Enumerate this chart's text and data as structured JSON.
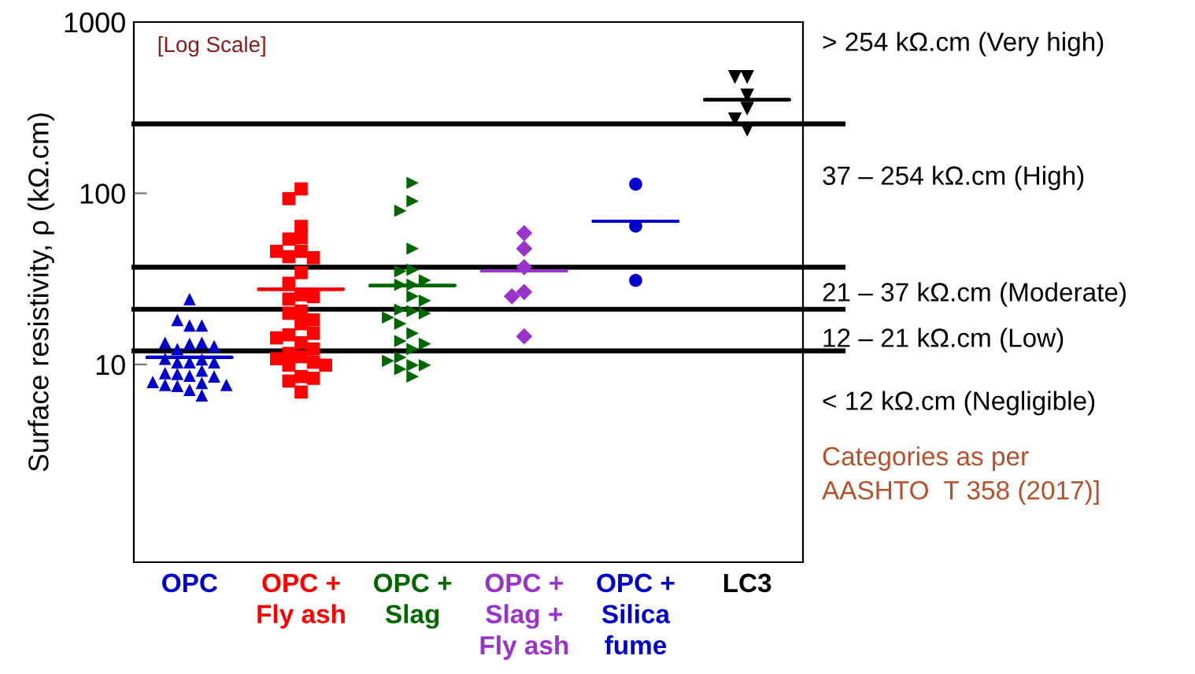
{
  "chart_data": {
    "type": "scatter",
    "ylabel": "Surface resistivity, ρ (kΩ.cm)",
    "categories": [
      "OPC",
      "OPC +\nFly ash",
      "OPC +\nSlag",
      "OPC +\nSlag +\nFly ash",
      "OPC +\nSilica\nfume",
      "LC3"
    ],
    "log": "y",
    "ylim": [
      0.7,
      1000
    ],
    "yticks": [
      10,
      100,
      1000
    ],
    "grid": false,
    "legend": false,
    "series": [
      {
        "color": "#0000cc",
        "marker": "triangle",
        "x": [
          "OPC",
          "OPC",
          "OPC",
          "OPC",
          "OPC",
          "OPC",
          "OPC",
          "OPC",
          "OPC",
          "OPC",
          "OPC",
          "OPC",
          "OPC",
          "OPC",
          "OPC",
          "OPC",
          "OPC",
          "OPC",
          "OPC",
          "OPC",
          "OPC",
          "OPC",
          "OPC",
          "OPC",
          "OPC",
          "OPC"
        ],
        "values": [
          24.1,
          16.9,
          18.2,
          16.9,
          13.2,
          12.3,
          13.4,
          13.4,
          12.8,
          10.3,
          10.3,
          10.7,
          10.8,
          10.3,
          8.6,
          8.8,
          9.2,
          8.9,
          8.5,
          7.5,
          7.8,
          7.9,
          7.6,
          7.6,
          7.1,
          6.6
        ]
      },
      {
        "color": "#ff0000",
        "marker": "square",
        "x": [
          "OPC +\nFly ash",
          "OPC +\nFly ash",
          "OPC +\nFly ash",
          "OPC +\nFly ash",
          "OPC +\nFly ash",
          "OPC +\nFly ash",
          "OPC +\nFly ash",
          "OPC +\nFly ash",
          "OPC +\nFly ash",
          "OPC +\nFly ash",
          "OPC +\nFly ash",
          "OPC +\nFly ash",
          "OPC +\nFly ash",
          "OPC +\nFly ash",
          "OPC +\nFly ash",
          "OPC +\nFly ash",
          "OPC +\nFly ash",
          "OPC +\nFly ash",
          "OPC +\nFly ash",
          "OPC +\nFly ash",
          "OPC +\nFly ash",
          "OPC +\nFly ash",
          "OPC +\nFly ash",
          "OPC +\nFly ash",
          "OPC +\nFly ash",
          "OPC +\nFly ash",
          "OPC +\nFly ash",
          "OPC +\nFly ash",
          "OPC +\nFly ash",
          "OPC +\nFly ash",
          "OPC +\nFly ash",
          "OPC +\nFly ash",
          "OPC +\nFly ash"
        ],
        "values": [
          106,
          93,
          64,
          55,
          54,
          45.8,
          42.6,
          42,
          45.8,
          34.4,
          29.8,
          25.5,
          24.1,
          24.9,
          20.5,
          19.9,
          18.2,
          17.3,
          14.9,
          15.2,
          13.4,
          14.3,
          11.1,
          11.6,
          12.3,
          10.8,
          9.9,
          10.3,
          9.9,
          8.5,
          8.0,
          8.3,
          6.9
        ]
      },
      {
        "color": "#006600",
        "marker": "triangle_right",
        "x": [
          "OPC +\nSlag",
          "OPC +\nSlag",
          "OPC +\nSlag",
          "OPC +\nSlag",
          "OPC +\nSlag",
          "OPC +\nSlag",
          "OPC +\nSlag",
          "OPC +\nSlag",
          "OPC +\nSlag",
          "OPC +\nSlag",
          "OPC +\nSlag",
          "OPC +\nSlag",
          "OPC +\nSlag",
          "OPC +\nSlag",
          "OPC +\nSlag",
          "OPC +\nSlag",
          "OPC +\nSlag",
          "OPC +\nSlag",
          "OPC +\nSlag",
          "OPC +\nSlag",
          "OPC +\nSlag",
          "OPC +\nSlag",
          "OPC +\nSlag",
          "OPC +\nSlag",
          "OPC +\nSlag",
          "OPC +\nSlag"
        ],
        "values": [
          115,
          90,
          79,
          47.5,
          35.7,
          35,
          31,
          29.2,
          29.2,
          25,
          20.5,
          20.9,
          23.6,
          19.9,
          18.8,
          15.2,
          17.3,
          13.7,
          12.3,
          13.2,
          9.9,
          11.0,
          9.9,
          10.5,
          9.4,
          8.5
        ]
      },
      {
        "color": "#9933cc",
        "marker": "diamond",
        "x": [
          "OPC +\nSlag +\nFly ash",
          "OPC +\nSlag +\nFly ash",
          "OPC +\nSlag +\nFly ash",
          "OPC +\nSlag +\nFly ash",
          "OPC +\nSlag +\nFly ash",
          "OPC +\nSlag +\nFly ash"
        ],
        "values": [
          58.5,
          47.5,
          37,
          26.5,
          25,
          14.6
        ]
      },
      {
        "color": "#0000cc",
        "marker": "circle",
        "x": [
          "OPC +\nSilica\nfume",
          "OPC +\nSilica\nfume",
          "OPC +\nSilica\nfume"
        ],
        "values": [
          113,
          64.3,
          31
        ]
      },
      {
        "color": "#000000",
        "marker": "triangle_down",
        "x": [
          "LC3",
          "LC3",
          "LC3",
          "LC3",
          "LC3",
          "LC3"
        ],
        "values": [
          477,
          477,
          372,
          312,
          270,
          235
        ]
      },
      {
        "type": "box",
        "colors": [
          "#0000cc",
          "#ff0000",
          "#006600",
          "#9933cc",
          "#0000cc",
          "#000000"
        ],
        "boxes": [
          {
            "low": 11.0,
            "q1": 11.0,
            "median": 11.0,
            "q3": 11.0,
            "high": 11.0
          },
          {
            "low": 27.5,
            "q1": 27.5,
            "median": 27.5,
            "q3": 27.5,
            "high": 27.5
          },
          {
            "low": 28.9,
            "q1": 28.9,
            "median": 28.9,
            "q3": 28.9,
            "high": 28.9
          },
          {
            "low": 35.2,
            "q1": 35.2,
            "median": 35.2,
            "q3": 35.2,
            "high": 35.2
          },
          {
            "low": 68.6,
            "q1": 68.6,
            "median": 68.6,
            "q3": 68.6,
            "high": 68.6
          },
          {
            "low": 352,
            "q1": 352,
            "median": 352,
            "q3": 352,
            "high": 352
          }
        ]
      }
    ],
    "ref_lines": [
      {
        "axis": "y",
        "value": 254,
        "color": "#000000"
      },
      {
        "axis": "y",
        "value": 37,
        "color": "#000000"
      },
      {
        "axis": "y",
        "value": 21,
        "color": "#000000"
      },
      {
        "axis": "y",
        "value": 12,
        "color": "#000000"
      }
    ],
    "annotations": [
      "[Log Scale]",
      "> 254 kΩ.cm (Very high)",
      "37 – 254 kΩ.cm (High)",
      "21 – 37 kΩ.cm (Moderate)",
      "12 – 21 kΩ.cm (Low)",
      "< 12 kΩ.cm (Negligible)",
      "Categories as per\nAASHTO  T 358 (2017)]"
    ]
  }
}
